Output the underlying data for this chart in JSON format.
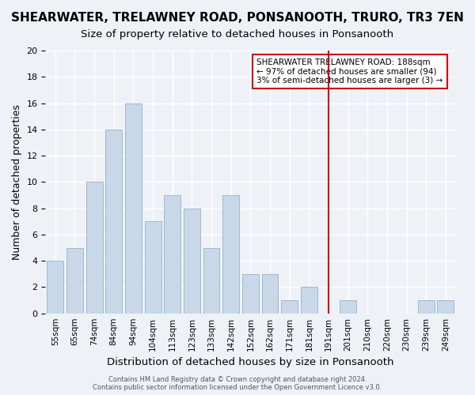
{
  "title": "SHEARWATER, TRELAWNEY ROAD, PONSANOOTH, TRURO, TR3 7EN",
  "subtitle": "Size of property relative to detached houses in Ponsanooth",
  "xlabel": "Distribution of detached houses by size in Ponsanooth",
  "ylabel": "Number of detached properties",
  "footer_line1": "Contains HM Land Registry data © Crown copyright and database right 2024.",
  "footer_line2": "Contains public sector information licensed under the Open Government Licence v3.0.",
  "bar_labels": [
    "55sqm",
    "65sqm",
    "74sqm",
    "84sqm",
    "94sqm",
    "104sqm",
    "113sqm",
    "123sqm",
    "133sqm",
    "142sqm",
    "152sqm",
    "162sqm",
    "171sqm",
    "181sqm",
    "191sqm",
    "201sqm",
    "210sqm",
    "220sqm",
    "230sqm",
    "239sqm",
    "249sqm"
  ],
  "bar_values": [
    4,
    5,
    10,
    14,
    16,
    7,
    9,
    8,
    5,
    9,
    3,
    3,
    1,
    2,
    0,
    1,
    0,
    0,
    0,
    1,
    1
  ],
  "bar_color": "#c8d8e8",
  "bar_edge_color": "#a0b8cc",
  "ylim": [
    0,
    20
  ],
  "yticks": [
    0,
    2,
    4,
    6,
    8,
    10,
    12,
    14,
    16,
    18,
    20
  ],
  "vline_x": 14,
  "vline_color": "#cc0000",
  "annotation_title": "SHEARWATER TRELAWNEY ROAD: 188sqm",
  "annotation_line1": "← 97% of detached houses are smaller (94)",
  "annotation_line2": "3% of semi-detached houses are larger (3) →",
  "background_color": "#eef2f7",
  "grid_color": "#ffffff",
  "title_fontsize": 11,
  "subtitle_fontsize": 9.5
}
